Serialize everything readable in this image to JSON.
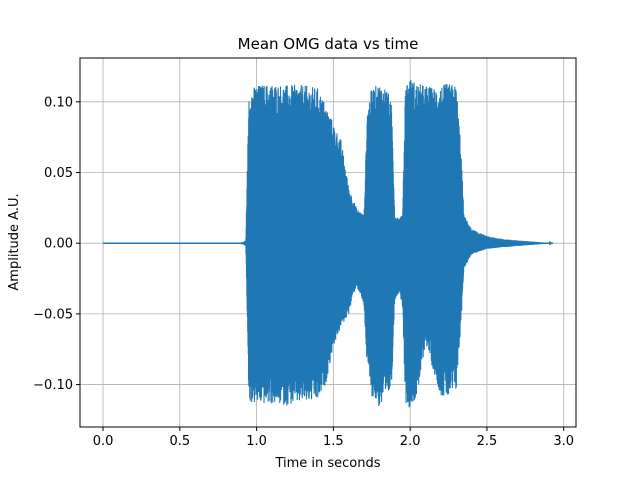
{
  "chart_data": {
    "type": "line",
    "title": "Mean OMG data vs time",
    "xlabel": "Time in seconds",
    "ylabel": "Amplitude A.U.",
    "xlim": [
      -0.15,
      3.08
    ],
    "ylim": [
      -0.13,
      0.131
    ],
    "x_ticks": [
      0.0,
      0.5,
      1.0,
      1.5,
      2.0,
      2.5,
      3.0
    ],
    "x_tick_labels": [
      "0.0",
      "0.5",
      "1.0",
      "1.5",
      "2.0",
      "2.5",
      "3.0"
    ],
    "y_ticks": [
      -0.1,
      -0.05,
      0.0,
      0.05,
      0.1
    ],
    "y_tick_labels": [
      "−0.10",
      "−0.05",
      "0.00",
      "0.05",
      "0.10"
    ],
    "grid": true,
    "series": [
      {
        "color": "#1f77b4",
        "envelope": {
          "t": [
            0.0,
            0.9,
            0.93,
            0.95,
            1.0,
            1.1,
            1.2,
            1.3,
            1.4,
            1.45,
            1.5,
            1.55,
            1.6,
            1.65,
            1.7,
            1.72,
            1.75,
            1.8,
            1.85,
            1.88,
            1.9,
            1.93,
            1.95,
            1.97,
            2.0,
            2.05,
            2.1,
            2.15,
            2.2,
            2.25,
            2.3,
            2.33,
            2.35,
            2.4,
            2.5,
            2.6,
            2.7,
            2.93
          ],
          "upper": [
            0.0,
            0.0,
            0.002,
            0.108,
            0.112,
            0.113,
            0.112,
            0.112,
            0.11,
            0.098,
            0.085,
            0.073,
            0.04,
            0.025,
            0.02,
            0.095,
            0.11,
            0.113,
            0.11,
            0.097,
            0.02,
            0.018,
            0.02,
            0.115,
            0.117,
            0.113,
            0.112,
            0.11,
            0.112,
            0.113,
            0.112,
            0.07,
            0.02,
            0.01,
            0.005,
            0.003,
            0.002,
            0.0
          ],
          "lower": [
            0.0,
            0.0,
            -0.002,
            -0.113,
            -0.114,
            -0.114,
            -0.115,
            -0.113,
            -0.112,
            -0.1,
            -0.073,
            -0.06,
            -0.05,
            -0.03,
            -0.045,
            -0.09,
            -0.108,
            -0.117,
            -0.112,
            -0.1,
            -0.04,
            -0.035,
            -0.045,
            -0.113,
            -0.117,
            -0.108,
            -0.07,
            -0.09,
            -0.108,
            -0.11,
            -0.105,
            -0.06,
            -0.018,
            -0.008,
            -0.004,
            -0.003,
            -0.002,
            0.0
          ]
        }
      }
    ]
  }
}
